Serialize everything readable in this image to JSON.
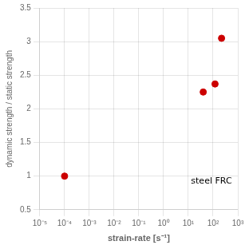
{
  "chart_data": {
    "type": "scatter",
    "x": [
      0.0001,
      40,
      120,
      220
    ],
    "values": [
      1.0,
      2.25,
      2.37,
      3.05
    ],
    "color": "#cc0000",
    "marker": "circle",
    "xlabel": "strain-rate [s⁻¹]",
    "ylabel": "dynamic strength / static strength",
    "annotation": "steel FRC",
    "log": "x",
    "xlim": [
      1e-05,
      1000.0
    ],
    "xticks": [
      {
        "value": 1e-05,
        "label": "10⁻⁵"
      },
      {
        "value": 0.0001,
        "label": "10⁻⁴"
      },
      {
        "value": 0.001,
        "label": "10⁻³"
      },
      {
        "value": 0.01,
        "label": "10⁻²"
      },
      {
        "value": 0.1,
        "label": "10⁻¹"
      },
      {
        "value": 1,
        "label": "10⁰"
      },
      {
        "value": 10,
        "label": "10¹"
      },
      {
        "value": 100,
        "label": "10²"
      },
      {
        "value": 1000,
        "label": "10³"
      }
    ],
    "ylim": [
      0.5,
      3.5
    ],
    "yticks": [
      0.5,
      1.0,
      1.5,
      2.0,
      2.5,
      3.0,
      3.5
    ],
    "grid": true
  }
}
